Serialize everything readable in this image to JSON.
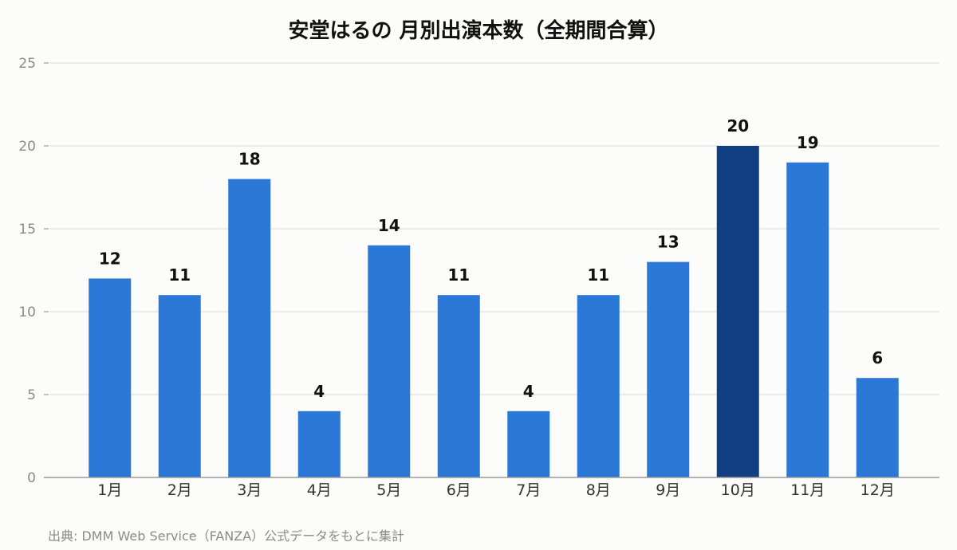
{
  "chart_data": {
    "type": "bar",
    "title": "安堂はるの 月別出演本数（全期間合算）",
    "categories": [
      "1月",
      "2月",
      "3月",
      "4月",
      "5月",
      "6月",
      "7月",
      "8月",
      "9月",
      "10月",
      "11月",
      "12月"
    ],
    "values": [
      12,
      11,
      18,
      4,
      14,
      11,
      4,
      11,
      13,
      20,
      19,
      6
    ],
    "ylim": [
      0,
      25
    ],
    "yticks": [
      0,
      5,
      10,
      15,
      20,
      25
    ],
    "grid": true,
    "legend": "none",
    "bar_color": "#2b78d6",
    "highlight_color": "#123f82",
    "highlight_index": 9
  },
  "source": "出典: DMM Web Service（FANZA）公式データをもとに集計"
}
